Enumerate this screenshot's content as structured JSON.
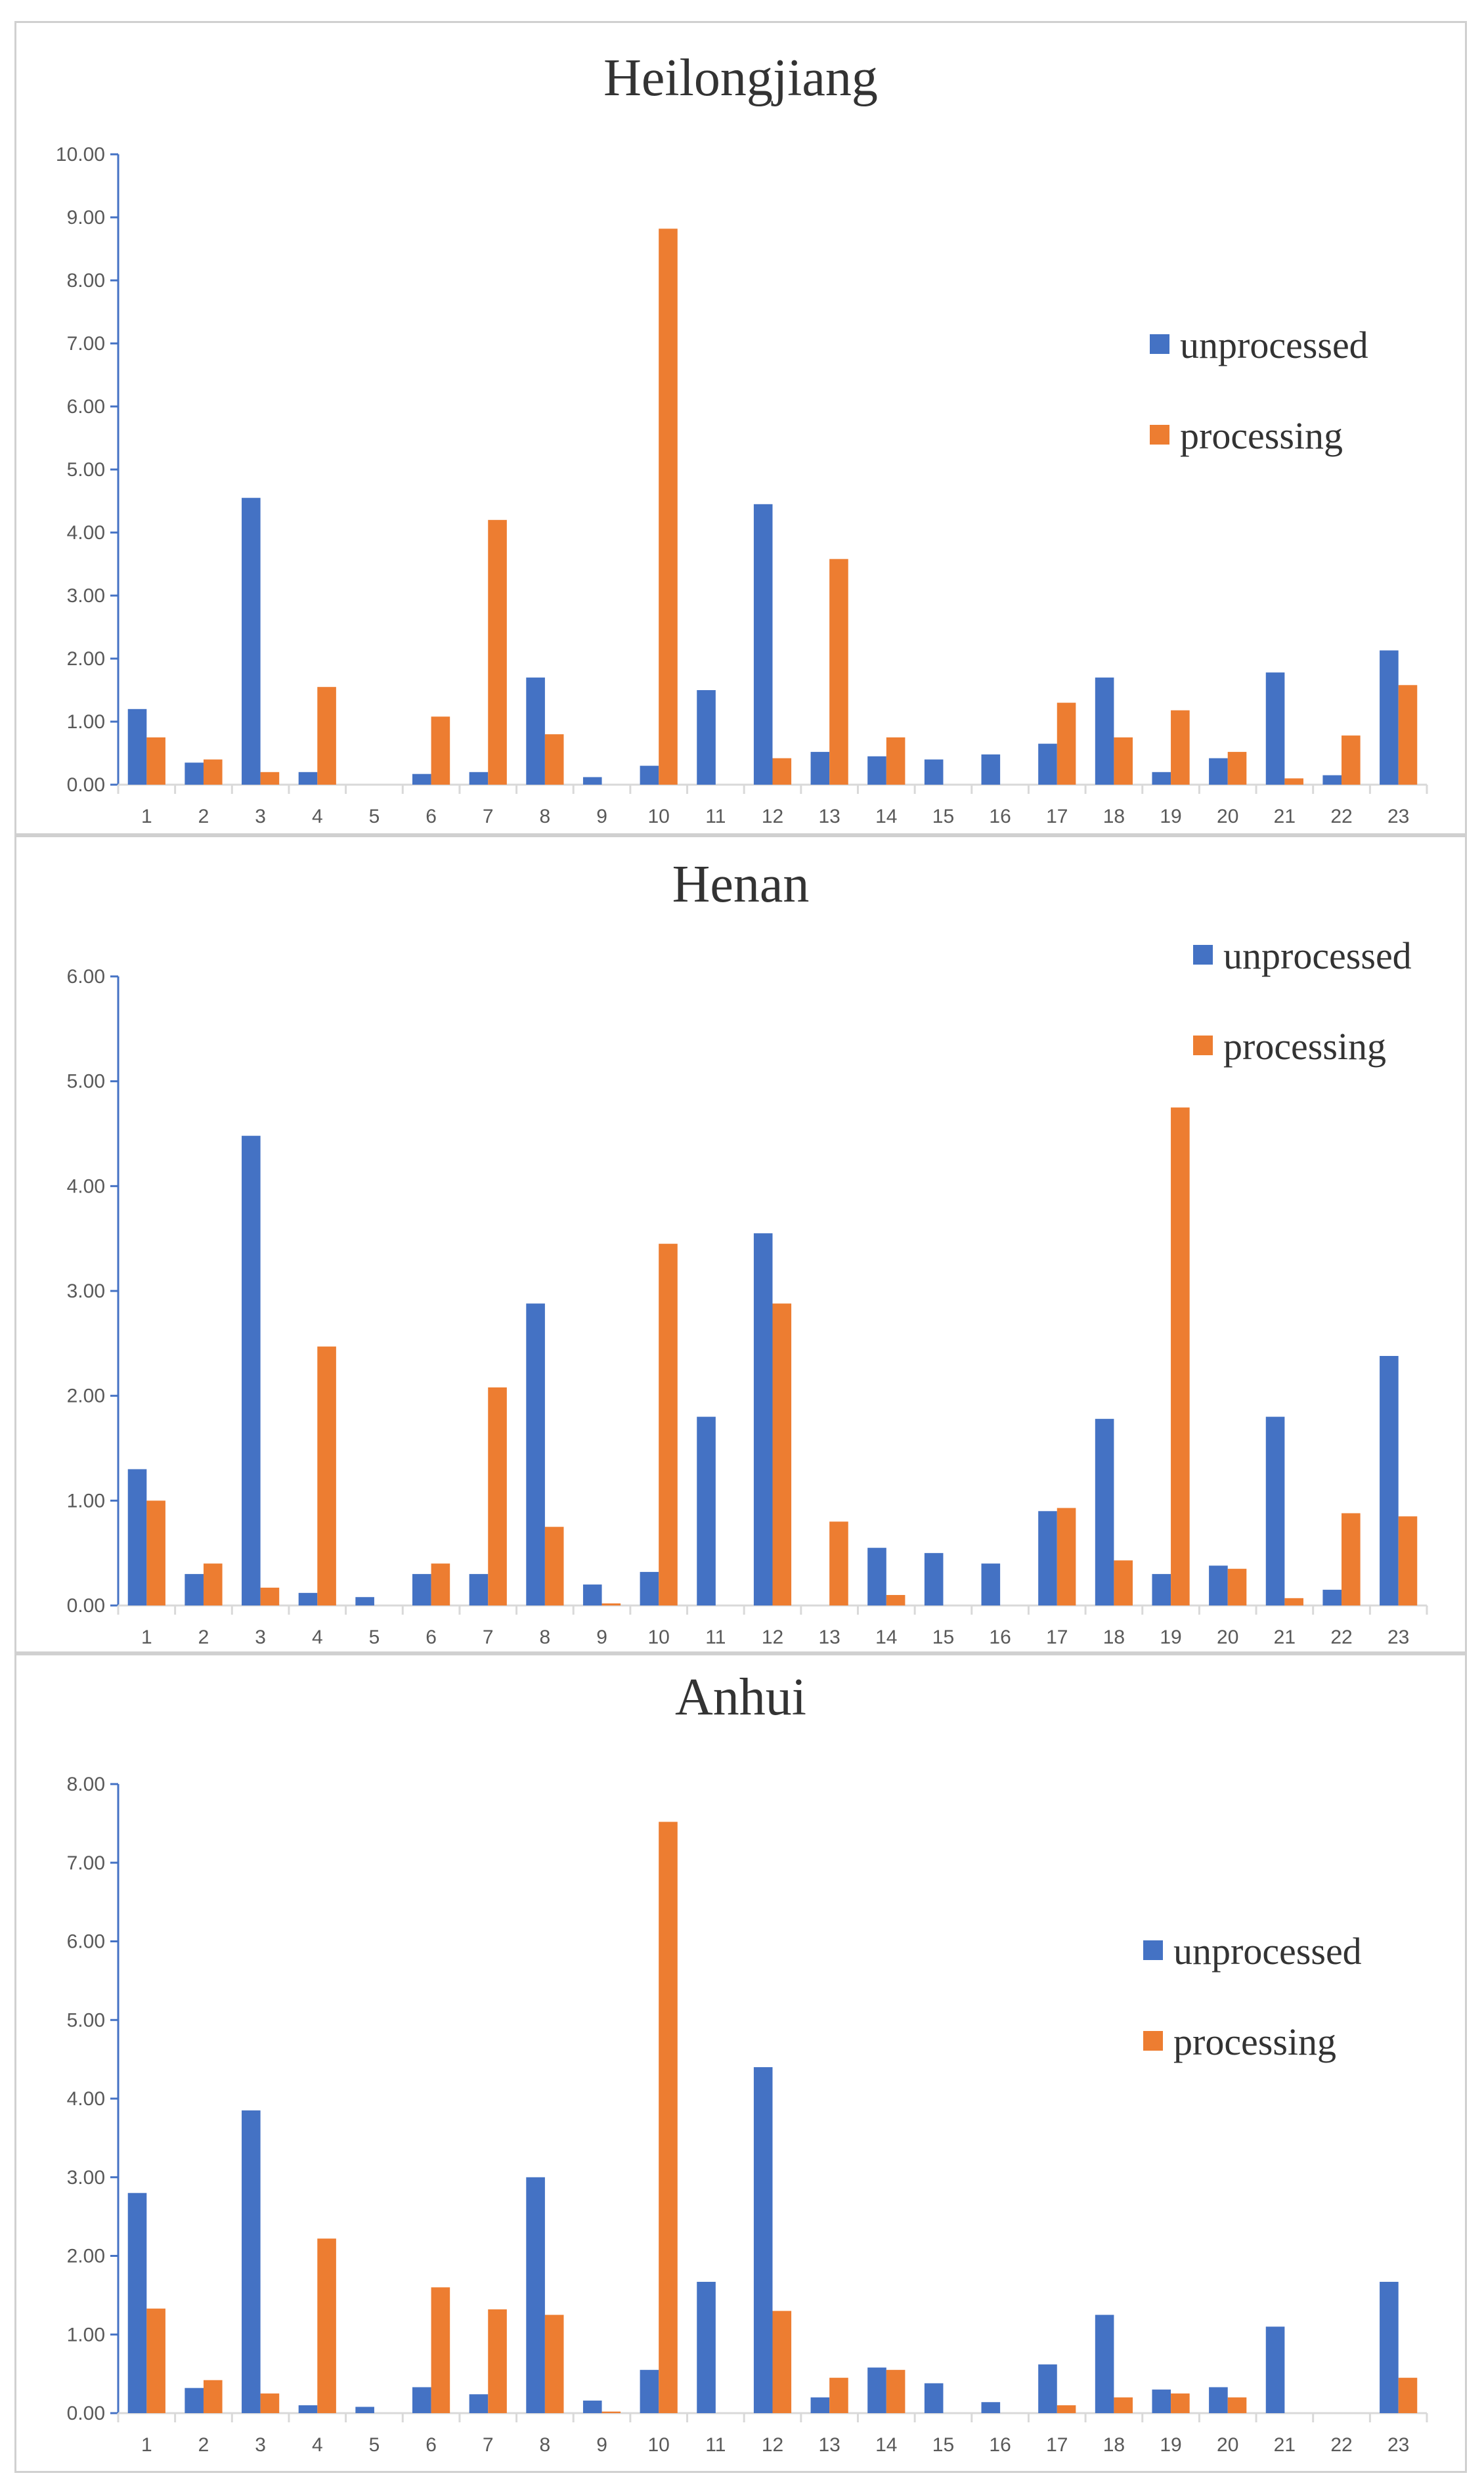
{
  "chart_data": [
    {
      "type": "bar",
      "title": "Heilongjiang",
      "categories": [
        "1",
        "2",
        "3",
        "4",
        "5",
        "6",
        "7",
        "8",
        "9",
        "10",
        "11",
        "12",
        "13",
        "14",
        "15",
        "16",
        "17",
        "18",
        "19",
        "20",
        "21",
        "22",
        "23"
      ],
      "ylim": [
        0,
        10
      ],
      "yticks": [
        "0.00",
        "1.00",
        "2.00",
        "3.00",
        "4.00",
        "5.00",
        "6.00",
        "7.00",
        "8.00",
        "9.00",
        "10.00"
      ],
      "legend_position": "right",
      "series": [
        {
          "name": "unprocessed",
          "color": "#4472C4",
          "values": [
            1.2,
            0.35,
            4.55,
            0.2,
            0,
            0.17,
            0.2,
            1.7,
            0.12,
            0.3,
            1.5,
            4.45,
            0.52,
            0.45,
            0.4,
            0.48,
            0.65,
            1.7,
            0.2,
            0.42,
            1.78,
            0.15,
            2.13
          ]
        },
        {
          "name": "processing",
          "color": "#ED7D31",
          "values": [
            0.75,
            0.4,
            0.2,
            1.55,
            0,
            1.08,
            4.2,
            0.8,
            0,
            8.82,
            0,
            0.42,
            3.58,
            0.75,
            0,
            0,
            1.3,
            0.75,
            1.18,
            0.52,
            0.1,
            0.78,
            1.58
          ]
        }
      ]
    },
    {
      "type": "bar",
      "title": "Henan",
      "categories": [
        "1",
        "2",
        "3",
        "4",
        "5",
        "6",
        "7",
        "8",
        "9",
        "10",
        "11",
        "12",
        "13",
        "14",
        "15",
        "16",
        "17",
        "18",
        "19",
        "20",
        "21",
        "22",
        "23"
      ],
      "ylim": [
        0,
        6
      ],
      "yticks": [
        "0.00",
        "1.00",
        "2.00",
        "3.00",
        "4.00",
        "5.00",
        "6.00"
      ],
      "legend_position": "top-right",
      "series": [
        {
          "name": "unprocessed",
          "color": "#4472C4",
          "values": [
            1.3,
            0.3,
            4.48,
            0.12,
            0.08,
            0.3,
            0.3,
            2.88,
            0.2,
            0.32,
            1.8,
            3.55,
            0,
            0.55,
            0.5,
            0.4,
            0.9,
            1.78,
            0.3,
            0.38,
            1.8,
            0.15,
            2.38
          ]
        },
        {
          "name": "processing",
          "color": "#ED7D31",
          "values": [
            1.0,
            0.4,
            0.17,
            2.47,
            0,
            0.4,
            2.08,
            0.75,
            0.02,
            3.45,
            0,
            2.88,
            0.8,
            0.1,
            0,
            0,
            0.93,
            0.43,
            4.75,
            0.35,
            0.07,
            0.88,
            0.85
          ]
        }
      ]
    },
    {
      "type": "bar",
      "title": "Anhui",
      "categories": [
        "1",
        "2",
        "3",
        "4",
        "5",
        "6",
        "7",
        "8",
        "9",
        "10",
        "11",
        "12",
        "13",
        "14",
        "15",
        "16",
        "17",
        "18",
        "19",
        "20",
        "21",
        "22",
        "23"
      ],
      "ylim": [
        0,
        8
      ],
      "yticks": [
        "0.00",
        "1.00",
        "2.00",
        "3.00",
        "4.00",
        "5.00",
        "6.00",
        "7.00",
        "8.00"
      ],
      "legend_position": "right",
      "series": [
        {
          "name": "unprocessed",
          "color": "#4472C4",
          "values": [
            2.8,
            0.32,
            3.85,
            0.1,
            0.08,
            0.33,
            0.24,
            3.0,
            0.16,
            0.55,
            1.67,
            4.4,
            0.2,
            0.58,
            0.38,
            0.14,
            0.62,
            1.25,
            0.3,
            0.33,
            1.1,
            0,
            1.67
          ]
        },
        {
          "name": "processing",
          "color": "#ED7D31",
          "values": [
            1.33,
            0.42,
            0.25,
            2.22,
            0,
            1.6,
            1.32,
            1.25,
            0.02,
            7.52,
            0,
            1.3,
            0.45,
            0.55,
            0,
            0,
            0.1,
            0.2,
            0.25,
            0.2,
            0,
            0,
            0.45
          ]
        }
      ]
    }
  ]
}
